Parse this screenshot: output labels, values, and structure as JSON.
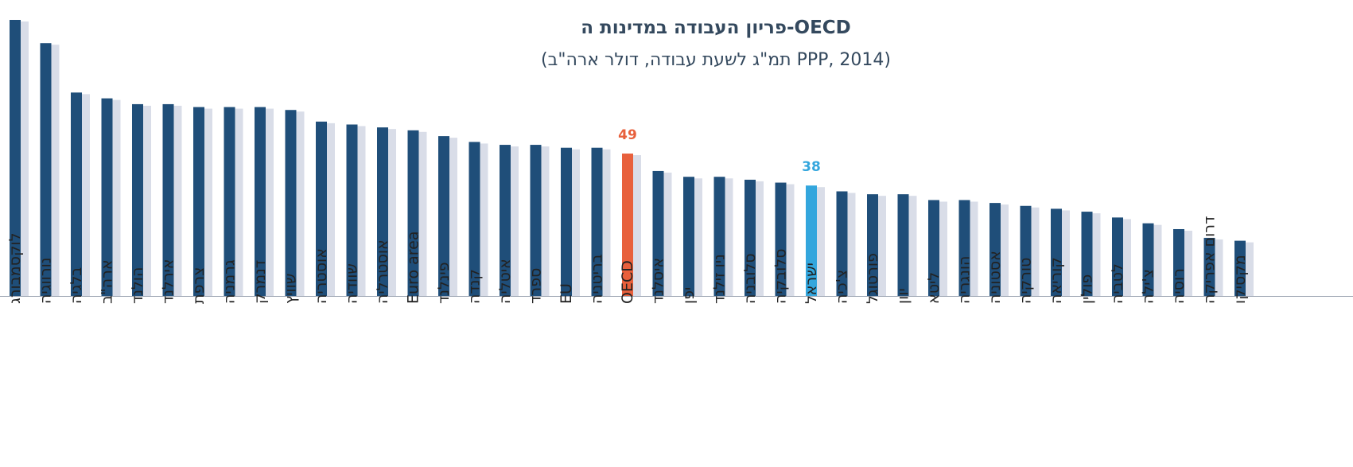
{
  "chart_data": {
    "type": "bar",
    "title": "פריון העבודה במדינות ה-OECD",
    "subtitle": "(תמ\"ג לשעת עבודה, דולר ארה\"ב PPP, 2014)",
    "categories": [
      "לוקסמבורג",
      "נורווגיה",
      "בלגיה",
      "ארה\"ב",
      "הולנד",
      "אירלנד",
      "צרפת",
      "גרמניה",
      "דנמרק",
      "שוויץ",
      "אוסטריה",
      "שוודיה",
      "אוסטרליה",
      "Euro area",
      "פינלנד",
      "קנדה",
      "איטליה",
      "ספרד",
      "EU",
      "בריטניה",
      "OECD",
      "איסלנד",
      "יפן",
      "ניו זילנד",
      "סלובניה",
      "סלובקיה",
      "ישראל",
      "צ'כיה",
      "פורטוגל",
      "יוון",
      "ליטא",
      "הונגריה",
      "אסטוניה",
      "טורקיה",
      "קוריאה",
      "פולין",
      "לטביה",
      "צ'ילה",
      "רוסיה",
      "דרום אפריקה",
      "מקסיקו"
    ],
    "values": [
      95,
      87,
      70,
      68,
      66,
      66,
      65,
      65,
      65,
      64,
      60,
      59,
      58,
      57,
      55,
      53,
      52,
      52,
      51,
      51,
      49,
      43,
      41,
      41,
      40,
      39,
      38,
      36,
      35,
      35,
      33,
      33,
      32,
      31,
      30,
      29,
      27,
      25,
      23,
      20,
      19
    ],
    "highlight": {
      "OECD": "#e8603c",
      "ישראל": "#33a6dd"
    },
    "data_labels": [
      {
        "category": "OECD",
        "text": "49",
        "color": "#e8603c"
      },
      {
        "category": "ישראל",
        "text": "38",
        "color": "#33a6dd"
      }
    ],
    "bar_color": "#1f4e79",
    "shadow_color": "#d9dde8",
    "title_color": "#34495e",
    "ylim": [
      0,
      100
    ],
    "grid": false,
    "xlabel": "",
    "ylabel": ""
  }
}
